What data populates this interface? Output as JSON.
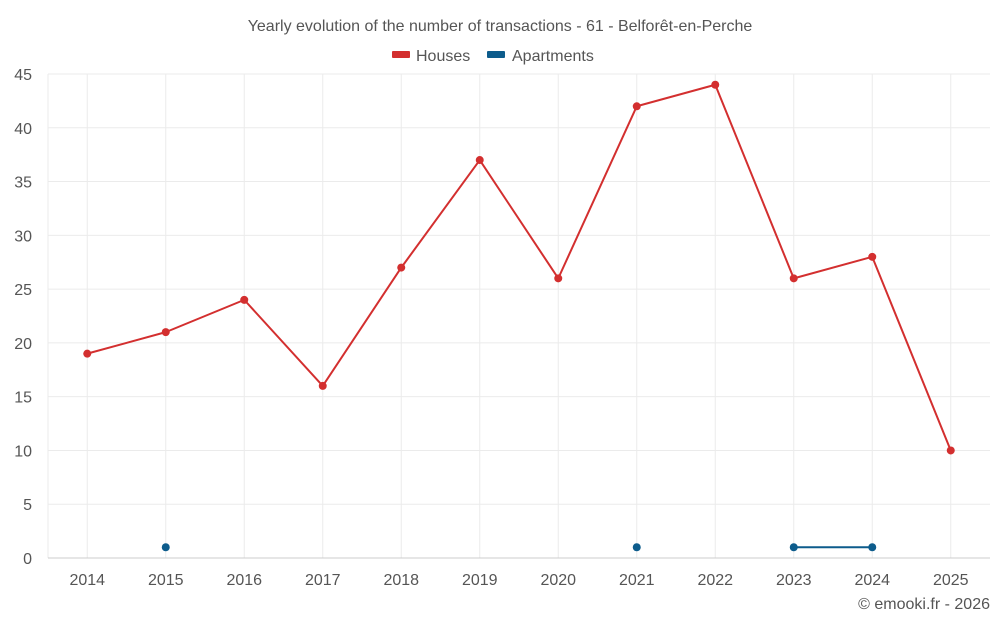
{
  "chart_data": {
    "type": "line",
    "title": "Yearly evolution of the number of transactions - 61 - Belforêt-en-Perche",
    "x": [
      "2014",
      "2015",
      "2016",
      "2017",
      "2018",
      "2019",
      "2020",
      "2021",
      "2022",
      "2023",
      "2024",
      "2025"
    ],
    "ylim": [
      0,
      45
    ],
    "yticks": [
      0,
      5,
      10,
      15,
      20,
      25,
      30,
      35,
      40,
      45
    ],
    "grid": true,
    "legend_position": "top-center",
    "series": [
      {
        "name": "Houses",
        "color": "#d32f2f",
        "values": [
          19,
          21,
          24,
          16,
          27,
          37,
          26,
          42,
          44,
          26,
          28,
          10
        ]
      },
      {
        "name": "Apartments",
        "color": "#0d5c8c",
        "values": [
          null,
          1,
          null,
          null,
          null,
          null,
          null,
          1,
          null,
          1,
          1,
          null
        ]
      }
    ],
    "credit": "© emooki.fr - 2026"
  }
}
